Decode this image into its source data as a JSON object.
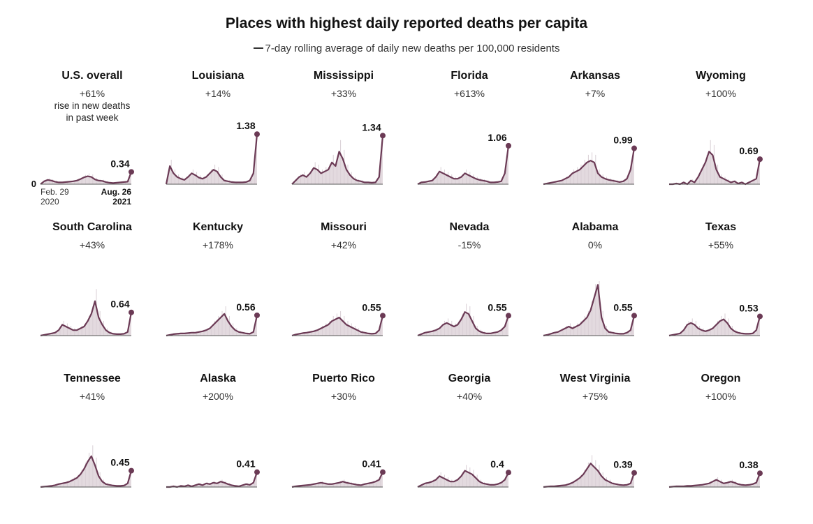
{
  "title": "Places with highest daily reported deaths per capita",
  "subtitle": "7-day rolling average of daily new deaths per 100,000 residents",
  "colors": {
    "line": "#6b3a55",
    "area": "#d9cdd4",
    "bars": "#c9bcc4",
    "baseline": "#555555"
  },
  "first_panel_note": "rise in new deaths in past week",
  "axis": {
    "y_zero_label": "0",
    "start_date": "Feb. 29",
    "start_year": "2020",
    "end_date": "Aug. 26",
    "end_year": "2021"
  },
  "chart_data": [
    {
      "type": "area",
      "name": "U.S. overall",
      "change": "+61%",
      "latest": "0.34",
      "ylim": [
        0,
        1.5
      ],
      "values": [
        0.0,
        0.08,
        0.12,
        0.1,
        0.07,
        0.05,
        0.05,
        0.06,
        0.07,
        0.08,
        0.1,
        0.14,
        0.19,
        0.22,
        0.2,
        0.13,
        0.1,
        0.09,
        0.06,
        0.04,
        0.03,
        0.04,
        0.05,
        0.06,
        0.07,
        0.34
      ]
    },
    {
      "type": "area",
      "name": "Louisiana",
      "change": "+14%",
      "latest": "1.38",
      "ylim": [
        0,
        1.5
      ],
      "values": [
        0.0,
        0.5,
        0.3,
        0.2,
        0.15,
        0.12,
        0.2,
        0.3,
        0.25,
        0.18,
        0.15,
        0.2,
        0.3,
        0.4,
        0.35,
        0.2,
        0.1,
        0.08,
        0.06,
        0.05,
        0.05,
        0.05,
        0.06,
        0.1,
        0.3,
        1.38
      ]
    },
    {
      "type": "area",
      "name": "Mississippi",
      "change": "+33%",
      "latest": "1.34",
      "ylim": [
        0,
        1.5
      ],
      "values": [
        0.0,
        0.1,
        0.2,
        0.25,
        0.2,
        0.3,
        0.45,
        0.4,
        0.3,
        0.35,
        0.4,
        0.6,
        0.5,
        0.9,
        0.7,
        0.4,
        0.25,
        0.15,
        0.1,
        0.08,
        0.05,
        0.05,
        0.04,
        0.05,
        0.2,
        1.34
      ]
    },
    {
      "type": "area",
      "name": "Florida",
      "change": "+613%",
      "latest": "1.06",
      "ylim": [
        0,
        1.5
      ],
      "values": [
        0.0,
        0.05,
        0.06,
        0.08,
        0.1,
        0.2,
        0.35,
        0.3,
        0.25,
        0.2,
        0.15,
        0.15,
        0.2,
        0.3,
        0.25,
        0.2,
        0.15,
        0.12,
        0.1,
        0.08,
        0.05,
        0.05,
        0.06,
        0.08,
        0.3,
        1.06
      ]
    },
    {
      "type": "area",
      "name": "Arkansas",
      "change": "+7%",
      "latest": "0.99",
      "ylim": [
        0,
        1.5
      ],
      "values": [
        0.0,
        0.02,
        0.04,
        0.06,
        0.08,
        0.1,
        0.15,
        0.2,
        0.3,
        0.35,
        0.4,
        0.5,
        0.6,
        0.65,
        0.6,
        0.3,
        0.2,
        0.15,
        0.12,
        0.1,
        0.08,
        0.06,
        0.08,
        0.15,
        0.4,
        0.99
      ]
    },
    {
      "type": "area",
      "name": "Wyoming",
      "change": "+100%",
      "latest": "0.69",
      "ylim": [
        0,
        1.5
      ],
      "values": [
        0.0,
        0.0,
        0.02,
        0.0,
        0.05,
        0.0,
        0.1,
        0.05,
        0.2,
        0.4,
        0.6,
        0.9,
        0.8,
        0.4,
        0.2,
        0.15,
        0.1,
        0.05,
        0.08,
        0.02,
        0.05,
        0.0,
        0.05,
        0.1,
        0.15,
        0.69
      ]
    },
    {
      "type": "area",
      "name": "South Carolina",
      "change": "+43%",
      "latest": "0.64",
      "ylim": [
        0,
        1.5
      ],
      "values": [
        0.0,
        0.02,
        0.04,
        0.06,
        0.08,
        0.15,
        0.3,
        0.25,
        0.2,
        0.15,
        0.15,
        0.2,
        0.25,
        0.4,
        0.6,
        0.95,
        0.5,
        0.3,
        0.15,
        0.08,
        0.05,
        0.04,
        0.04,
        0.05,
        0.1,
        0.64
      ]
    },
    {
      "type": "area",
      "name": "Kentucky",
      "change": "+178%",
      "latest": "0.56",
      "ylim": [
        0,
        1.5
      ],
      "values": [
        0.0,
        0.02,
        0.04,
        0.05,
        0.06,
        0.06,
        0.07,
        0.08,
        0.08,
        0.1,
        0.12,
        0.15,
        0.2,
        0.3,
        0.4,
        0.5,
        0.6,
        0.4,
        0.25,
        0.15,
        0.1,
        0.08,
        0.06,
        0.05,
        0.1,
        0.56
      ]
    },
    {
      "type": "area",
      "name": "Missouri",
      "change": "+42%",
      "latest": "0.55",
      "ylim": [
        0,
        1.5
      ],
      "values": [
        0.0,
        0.03,
        0.05,
        0.07,
        0.08,
        0.1,
        0.12,
        0.15,
        0.2,
        0.25,
        0.3,
        0.4,
        0.45,
        0.5,
        0.4,
        0.3,
        0.25,
        0.2,
        0.15,
        0.1,
        0.08,
        0.06,
        0.05,
        0.06,
        0.15,
        0.55
      ]
    },
    {
      "type": "area",
      "name": "Nevada",
      "change": "-15%",
      "latest": "0.55",
      "ylim": [
        0,
        1.5
      ],
      "values": [
        0.0,
        0.04,
        0.08,
        0.1,
        0.12,
        0.15,
        0.2,
        0.3,
        0.35,
        0.3,
        0.25,
        0.3,
        0.45,
        0.65,
        0.6,
        0.4,
        0.2,
        0.12,
        0.08,
        0.06,
        0.06,
        0.08,
        0.1,
        0.15,
        0.25,
        0.55
      ]
    },
    {
      "type": "area",
      "name": "Alabama",
      "change": "0%",
      "latest": "0.55",
      "ylim": [
        0,
        1.5
      ],
      "values": [
        0.0,
        0.02,
        0.05,
        0.08,
        0.1,
        0.15,
        0.2,
        0.25,
        0.2,
        0.25,
        0.3,
        0.4,
        0.5,
        0.7,
        1.05,
        1.4,
        0.5,
        0.2,
        0.1,
        0.08,
        0.06,
        0.05,
        0.05,
        0.08,
        0.15,
        0.55
      ]
    },
    {
      "type": "area",
      "name": "Texas",
      "change": "+55%",
      "latest": "0.53",
      "ylim": [
        0,
        1.5
      ],
      "values": [
        0.0,
        0.02,
        0.04,
        0.06,
        0.15,
        0.3,
        0.35,
        0.3,
        0.2,
        0.15,
        0.12,
        0.15,
        0.2,
        0.3,
        0.4,
        0.45,
        0.35,
        0.2,
        0.12,
        0.08,
        0.06,
        0.05,
        0.05,
        0.06,
        0.15,
        0.53
      ]
    },
    {
      "type": "area",
      "name": "Tennessee",
      "change": "+41%",
      "latest": "0.45",
      "ylim": [
        0,
        1.5
      ],
      "values": [
        0.0,
        0.01,
        0.02,
        0.03,
        0.05,
        0.08,
        0.1,
        0.12,
        0.15,
        0.2,
        0.25,
        0.35,
        0.5,
        0.7,
        0.85,
        0.6,
        0.3,
        0.15,
        0.08,
        0.06,
        0.04,
        0.03,
        0.03,
        0.04,
        0.1,
        0.45
      ]
    },
    {
      "type": "area",
      "name": "Alaska",
      "change": "+200%",
      "latest": "0.41",
      "ylim": [
        0,
        1.5
      ],
      "values": [
        0.0,
        0.0,
        0.02,
        0.0,
        0.03,
        0.02,
        0.05,
        0.02,
        0.05,
        0.08,
        0.05,
        0.1,
        0.08,
        0.12,
        0.1,
        0.15,
        0.12,
        0.08,
        0.05,
        0.03,
        0.02,
        0.05,
        0.08,
        0.06,
        0.12,
        0.41
      ]
    },
    {
      "type": "area",
      "name": "Puerto Rico",
      "change": "+30%",
      "latest": "0.41",
      "ylim": [
        0,
        1.5
      ],
      "values": [
        0.0,
        0.02,
        0.03,
        0.04,
        0.05,
        0.06,
        0.08,
        0.1,
        0.12,
        0.1,
        0.08,
        0.08,
        0.1,
        0.12,
        0.15,
        0.12,
        0.1,
        0.08,
        0.06,
        0.05,
        0.08,
        0.1,
        0.12,
        0.15,
        0.2,
        0.41
      ]
    },
    {
      "type": "area",
      "name": "Georgia",
      "change": "+40%",
      "latest": "0.4",
      "ylim": [
        0,
        1.5
      ],
      "values": [
        0.0,
        0.05,
        0.1,
        0.12,
        0.15,
        0.2,
        0.3,
        0.25,
        0.2,
        0.15,
        0.15,
        0.2,
        0.3,
        0.45,
        0.4,
        0.35,
        0.25,
        0.15,
        0.1,
        0.08,
        0.06,
        0.06,
        0.08,
        0.12,
        0.2,
        0.4
      ]
    },
    {
      "type": "area",
      "name": "West Virginia",
      "change": "+75%",
      "latest": "0.39",
      "ylim": [
        0,
        1.5
      ],
      "values": [
        0.0,
        0.01,
        0.02,
        0.02,
        0.03,
        0.04,
        0.05,
        0.08,
        0.12,
        0.18,
        0.25,
        0.35,
        0.5,
        0.65,
        0.55,
        0.45,
        0.3,
        0.2,
        0.15,
        0.1,
        0.08,
        0.06,
        0.05,
        0.06,
        0.1,
        0.39
      ]
    },
    {
      "type": "area",
      "name": "Oregon",
      "change": "+100%",
      "latest": "0.38",
      "ylim": [
        0,
        1.5
      ],
      "values": [
        0.0,
        0.01,
        0.02,
        0.02,
        0.02,
        0.03,
        0.03,
        0.04,
        0.05,
        0.06,
        0.08,
        0.1,
        0.15,
        0.2,
        0.15,
        0.1,
        0.12,
        0.15,
        0.12,
        0.08,
        0.06,
        0.05,
        0.06,
        0.08,
        0.12,
        0.38
      ]
    }
  ]
}
